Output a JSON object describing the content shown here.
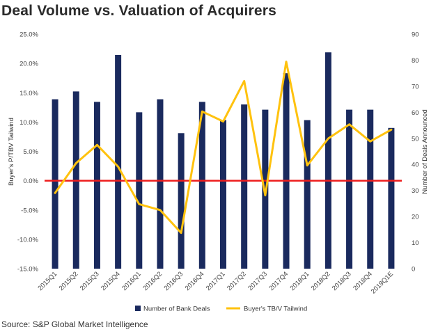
{
  "title": "Deal Volume vs. Valuation of Acquirers",
  "source": "Source: S&P Global Market Intelligence",
  "chart_data": {
    "type": "bar+line",
    "title": "Deal Volume vs. Valuation of Acquirers",
    "categories": [
      "2015Q1",
      "2015Q2",
      "2015Q3",
      "2015Q4",
      "2016Q1",
      "2016Q2",
      "2016Q3",
      "2016Q4",
      "2017Q1",
      "2017Q2",
      "2017Q3",
      "2017Q4",
      "2018Q1",
      "2018Q2",
      "2018Q3",
      "2018Q4",
      "2019Q1E"
    ],
    "y_left": {
      "label": "Buyer's P/TBV Tailwind",
      "min": -15,
      "max": 25,
      "step": 5,
      "tick_labels": [
        "25.0%",
        "20.0%",
        "15.0%",
        "10.0%",
        "5.0%",
        "0.0%",
        "-5.0%",
        "-10.0%",
        "-15.0%"
      ]
    },
    "y_right": {
      "label": "Number of Deals Announced",
      "min": 0,
      "max": 90,
      "step": 10,
      "tick_labels": [
        "90",
        "80",
        "70",
        "60",
        "50",
        "40",
        "30",
        "20",
        "10",
        "0"
      ]
    },
    "series": [
      {
        "name": "Number of Bank Deals",
        "type": "bar",
        "axis": "right",
        "color": "#1a2a5e",
        "values": [
          65,
          68,
          64,
          82,
          60,
          65,
          52,
          64,
          57,
          63,
          61,
          75,
          57,
          83,
          61,
          61,
          54
        ]
      },
      {
        "name": "Buyer's TB/V Tailwind",
        "type": "line",
        "axis": "left",
        "color": "#ffc20e",
        "values": [
          -2.1,
          3.0,
          6.1,
          2.4,
          -4.0,
          -5.0,
          -8.9,
          11.8,
          10.1,
          17.0,
          -2.5,
          20.3,
          2.6,
          7.2,
          9.6,
          6.7,
          8.7
        ]
      }
    ],
    "reference_line": {
      "value": 0,
      "axis": "left",
      "color": "#ee1c1c"
    },
    "legend": {
      "placement": "bottom"
    },
    "grid": false
  }
}
